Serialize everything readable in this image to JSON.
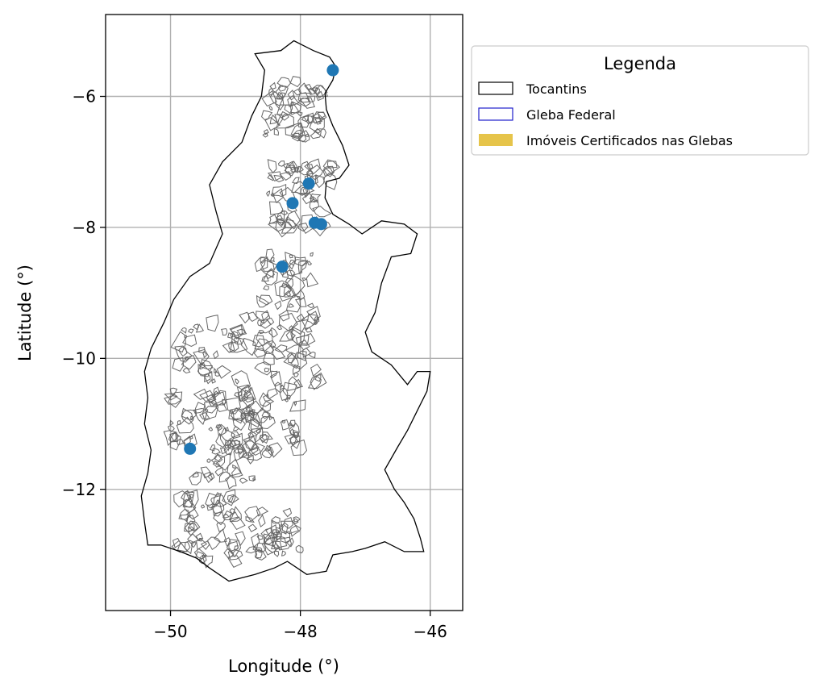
{
  "chart_data": {
    "type": "map",
    "title": "",
    "xlabel": "Longitude (°)",
    "ylabel": "Latitude (°)",
    "xlim": [
      -51.0,
      -45.5
    ],
    "ylim": [
      -13.85,
      -4.75
    ],
    "xticks": [
      -50,
      -48,
      -46
    ],
    "yticks": [
      -6,
      -8,
      -10,
      -12
    ],
    "xtick_labels": [
      "−50",
      "−48",
      "−46"
    ],
    "ytick_labels": [
      "−6",
      "−8",
      "−10",
      "−12"
    ],
    "grid": true,
    "legend": {
      "title": "Legenda",
      "placement": "outside-right-top",
      "entries": [
        {
          "label": "Tocantins",
          "style": "outline",
          "color": "#000000"
        },
        {
          "label": "Gleba Federal",
          "style": "outline",
          "color": "#1f1fcc"
        },
        {
          "label": "Imóveis Certificados nas Glebas",
          "style": "fill",
          "color": "#e6c44a"
        }
      ]
    },
    "points": [
      {
        "lon": -47.5,
        "lat": -5.6
      },
      {
        "lon": -47.87,
        "lat": -7.33
      },
      {
        "lon": -48.12,
        "lat": -7.63
      },
      {
        "lon": -47.78,
        "lat": -7.93
      },
      {
        "lon": -47.68,
        "lat": -7.95
      },
      {
        "lon": -48.28,
        "lat": -8.6
      },
      {
        "lon": -49.7,
        "lat": -11.38
      }
    ],
    "point_color": "#1f77b4",
    "gleba_color": "#666666",
    "state_outline": [
      [
        -48.7,
        -5.35
      ],
      [
        -48.3,
        -5.3
      ],
      [
        -48.1,
        -5.15
      ],
      [
        -47.8,
        -5.3
      ],
      [
        -47.55,
        -5.4
      ],
      [
        -47.45,
        -5.55
      ],
      [
        -47.5,
        -5.75
      ],
      [
        -47.62,
        -5.95
      ],
      [
        -47.6,
        -6.2
      ],
      [
        -47.5,
        -6.45
      ],
      [
        -47.35,
        -6.75
      ],
      [
        -47.25,
        -7.05
      ],
      [
        -47.4,
        -7.25
      ],
      [
        -47.6,
        -7.3
      ],
      [
        -47.62,
        -7.55
      ],
      [
        -47.5,
        -7.8
      ],
      [
        -47.25,
        -7.95
      ],
      [
        -47.05,
        -8.1
      ],
      [
        -46.75,
        -7.9
      ],
      [
        -46.4,
        -7.95
      ],
      [
        -46.2,
        -8.1
      ],
      [
        -46.3,
        -8.4
      ],
      [
        -46.6,
        -8.45
      ],
      [
        -46.75,
        -8.85
      ],
      [
        -46.85,
        -9.3
      ],
      [
        -47.0,
        -9.6
      ],
      [
        -46.9,
        -9.9
      ],
      [
        -46.6,
        -10.1
      ],
      [
        -46.35,
        -10.4
      ],
      [
        -46.2,
        -10.2
      ],
      [
        -46.0,
        -10.2
      ],
      [
        -46.05,
        -10.5
      ],
      [
        -46.2,
        -10.8
      ],
      [
        -46.35,
        -11.1
      ],
      [
        -46.5,
        -11.35
      ],
      [
        -46.7,
        -11.7
      ],
      [
        -46.55,
        -12.0
      ],
      [
        -46.4,
        -12.2
      ],
      [
        -46.25,
        -12.45
      ],
      [
        -46.15,
        -12.75
      ],
      [
        -46.1,
        -12.95
      ],
      [
        -46.4,
        -12.95
      ],
      [
        -46.7,
        -12.8
      ],
      [
        -47.0,
        -12.9
      ],
      [
        -47.2,
        -12.95
      ],
      [
        -47.5,
        -13.0
      ],
      [
        -47.6,
        -13.25
      ],
      [
        -47.9,
        -13.3
      ],
      [
        -48.2,
        -13.1
      ],
      [
        -48.4,
        -13.2
      ],
      [
        -48.7,
        -13.3
      ],
      [
        -48.9,
        -13.35
      ],
      [
        -49.1,
        -13.4
      ],
      [
        -49.4,
        -13.2
      ],
      [
        -49.6,
        -13.05
      ],
      [
        -49.85,
        -12.95
      ],
      [
        -50.15,
        -12.85
      ],
      [
        -50.35,
        -12.85
      ],
      [
        -50.4,
        -12.5
      ],
      [
        -50.45,
        -12.1
      ],
      [
        -50.35,
        -11.75
      ],
      [
        -50.3,
        -11.4
      ],
      [
        -50.4,
        -11.0
      ],
      [
        -50.35,
        -10.6
      ],
      [
        -50.4,
        -10.2
      ],
      [
        -50.3,
        -9.85
      ],
      [
        -50.1,
        -9.45
      ],
      [
        -49.95,
        -9.1
      ],
      [
        -49.7,
        -8.75
      ],
      [
        -49.4,
        -8.55
      ],
      [
        -49.2,
        -8.1
      ],
      [
        -49.3,
        -7.75
      ],
      [
        -49.4,
        -7.35
      ],
      [
        -49.2,
        -7.0
      ],
      [
        -48.9,
        -6.7
      ],
      [
        -48.75,
        -6.3
      ],
      [
        -48.6,
        -6.0
      ],
      [
        -48.55,
        -5.6
      ],
      [
        -48.7,
        -5.35
      ]
    ]
  }
}
